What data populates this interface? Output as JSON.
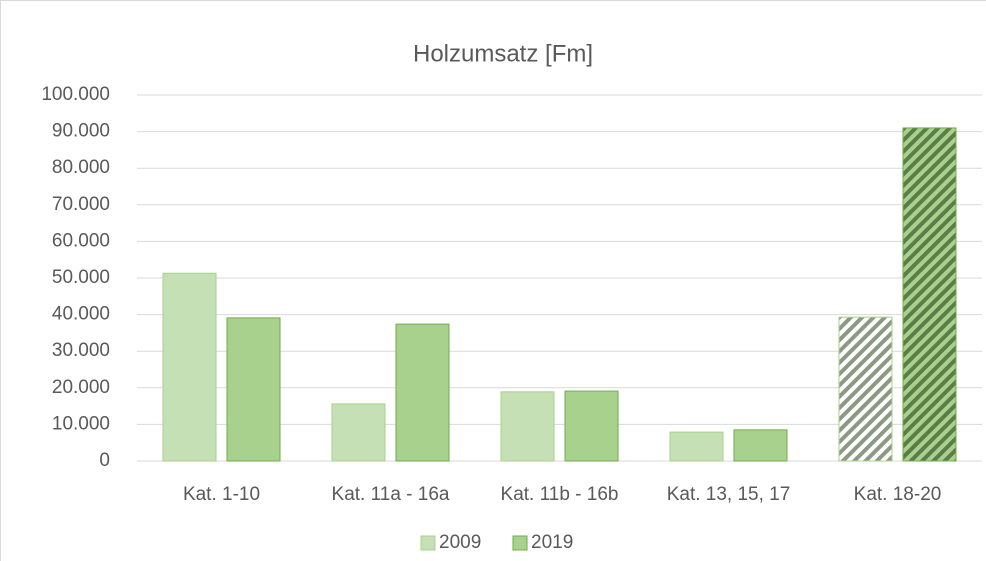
{
  "chart_data": {
    "type": "bar",
    "title": "Holzumsatz [Fm]",
    "categories": [
      "Kat. 1-10",
      "Kat. 11a - 16a",
      "Kat. 11b - 16b",
      "Kat. 13, 15, 17",
      "Kat. 18-20"
    ],
    "series": [
      {
        "name": "2009",
        "color": "#c5e0b4",
        "values": [
          51300,
          15600,
          18900,
          7900,
          39300
        ]
      },
      {
        "name": "2019",
        "color": "#a9d18e",
        "values": [
          39100,
          37400,
          19100,
          8500,
          91000
        ]
      }
    ],
    "hatched": [
      4
    ],
    "ylim": [
      0,
      100000
    ],
    "yticks": [
      0,
      {
        "value": 10000,
        "label": "10.000"
      },
      {
        "value": 20000,
        "label": "20.000"
      },
      {
        "value": 30000,
        "label": "30.000"
      },
      {
        "value": 40000,
        "label": "40.000"
      },
      {
        "value": 50000,
        "label": "50.000"
      },
      {
        "value": 60000,
        "label": "60.000"
      },
      {
        "value": 70000,
        "label": "70.000"
      },
      {
        "value": 80000,
        "label": "80.000"
      },
      {
        "value": 90000,
        "label": "90.000"
      },
      {
        "value": 100000,
        "label": "100.000"
      }
    ],
    "grid": true,
    "legend": "bottom"
  }
}
